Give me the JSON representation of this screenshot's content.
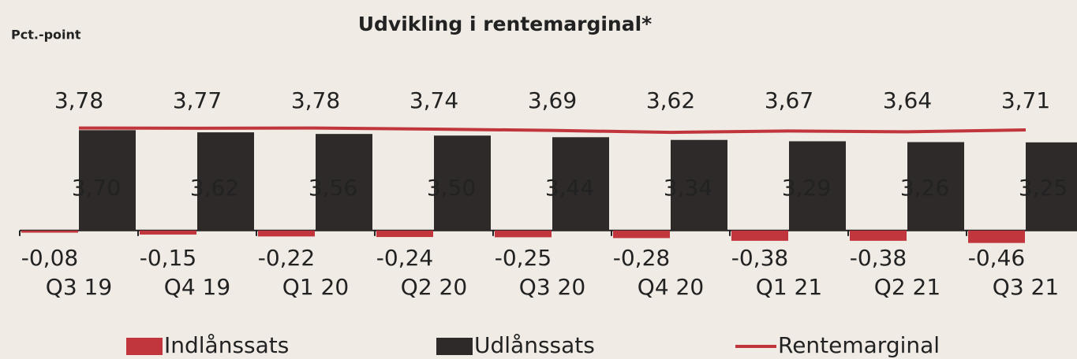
{
  "chart_data": {
    "type": "bar",
    "title": "Udvikling i rentemarginal*",
    "y_label": "Pct.-point",
    "categories": [
      "Q3 19",
      "Q4 19",
      "Q1 20",
      "Q2 20",
      "Q3 20",
      "Q4 20",
      "Q1 21",
      "Q2 21",
      "Q3 21"
    ],
    "ylim": [
      -0.5,
      4
    ],
    "series": [
      {
        "name": "Indlånssats",
        "type": "bar",
        "color": "#c1363d",
        "values": [
          -0.08,
          -0.15,
          -0.22,
          -0.24,
          -0.25,
          -0.28,
          -0.38,
          -0.38,
          -0.46
        ],
        "value_labels": [
          "-0,08",
          "-0,15",
          "-0,22",
          "-0,24",
          "-0,25",
          "-0,28",
          "-0,38",
          "-0,38",
          "-0,46"
        ]
      },
      {
        "name": "Udlånssats",
        "type": "bar",
        "color": "#2e2a29",
        "values": [
          3.7,
          3.62,
          3.56,
          3.5,
          3.44,
          3.34,
          3.29,
          3.26,
          3.25
        ],
        "value_labels": [
          "3,70",
          "3,62",
          "3,56",
          "3,50",
          "3,44",
          "3,34",
          "3,29",
          "3,26",
          "3,25"
        ]
      },
      {
        "name": "Rentemarginal",
        "type": "line",
        "color": "#c1363d",
        "values": [
          3.78,
          3.77,
          3.78,
          3.74,
          3.69,
          3.62,
          3.67,
          3.64,
          3.71
        ],
        "value_labels": [
          "3,78",
          "3,77",
          "3,78",
          "3,74",
          "3,69",
          "3,62",
          "3,67",
          "3,64",
          "3,71"
        ]
      }
    ]
  }
}
